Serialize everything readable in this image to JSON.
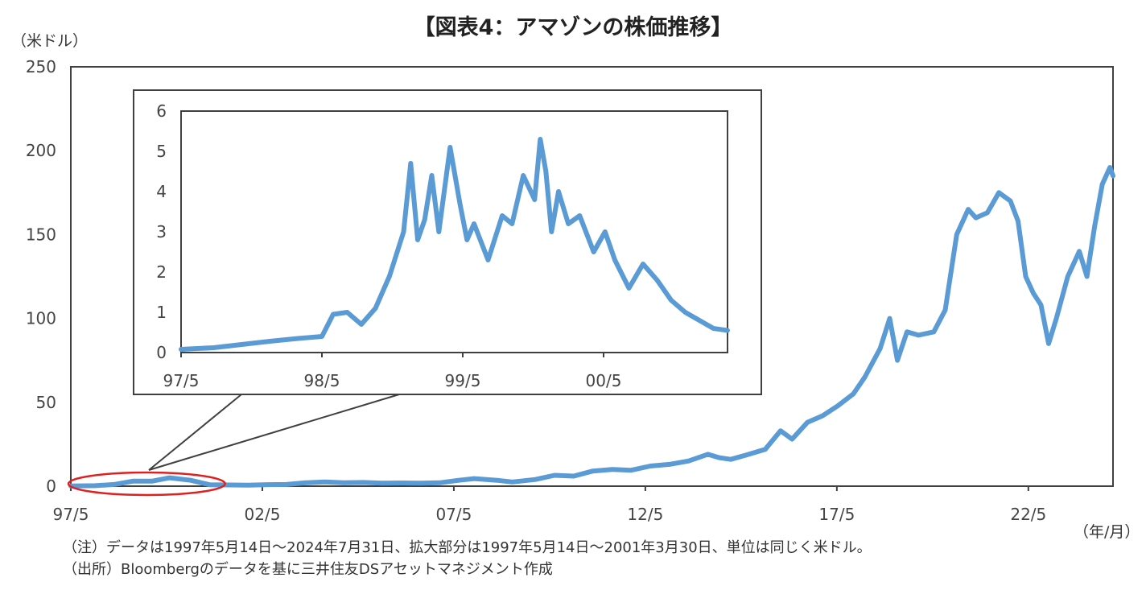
{
  "title": "【図表4：アマゾンの株価推移】",
  "y_unit": "（米ドル）",
  "x_unit": "（年/月）",
  "notes": {
    "note1": "（注）データは1997年5月14日～2024年7月31日、拡大部分は1997年5月14日～2001年3月30日、単位は同じく米ドル。",
    "note2": "（出所）Bloombergのデータを基に三井住友DSアセットマネジメント作成"
  },
  "colors": {
    "line": "#5b9bd5",
    "ellipse": "#e02020",
    "axis": "#404040",
    "callout": "#404040"
  },
  "chart_data": [
    {
      "type": "line",
      "title": "",
      "xlabel": "（年/月）",
      "ylabel": "（米ドル）",
      "ylim": [
        0,
        250
      ],
      "yticks": [
        0,
        50,
        100,
        150,
        200,
        250
      ],
      "xlim": [
        1997.37,
        2024.58
      ],
      "xticks": [
        {
          "label": "97/5",
          "value": 1997.37
        },
        {
          "label": "02/5",
          "value": 2002.37
        },
        {
          "label": "07/5",
          "value": 2007.37
        },
        {
          "label": "12/5",
          "value": 2012.37
        },
        {
          "label": "17/5",
          "value": 2017.37
        },
        {
          "label": "22/5",
          "value": 2022.37
        }
      ],
      "grid": false,
      "series": [
        {
          "x": [
            1997.37,
            1998.0,
            1998.5,
            1999.0,
            1999.5,
            1999.95,
            2000.5,
            2001.0,
            2001.5,
            2002.0,
            2002.5,
            2003.0,
            2003.5,
            2004.0,
            2004.5,
            2005.0,
            2005.5,
            2006.0,
            2006.5,
            2007.0,
            2007.5,
            2007.9,
            2008.5,
            2008.9,
            2009.5,
            2010.0,
            2010.5,
            2011.0,
            2011.5,
            2012.0,
            2012.5,
            2013.0,
            2013.5,
            2014.0,
            2014.3,
            2014.6,
            2015.0,
            2015.5,
            2015.9,
            2016.2,
            2016.6,
            2017.0,
            2017.4,
            2017.8,
            2018.1,
            2018.5,
            2018.75,
            2018.95,
            2019.2,
            2019.5,
            2019.9,
            2020.2,
            2020.5,
            2020.8,
            2021.0,
            2021.3,
            2021.6,
            2021.9,
            2022.1,
            2022.3,
            2022.5,
            2022.7,
            2022.9,
            2023.1,
            2023.4,
            2023.7,
            2023.9,
            2024.1,
            2024.3,
            2024.5,
            2024.58
          ],
          "y": [
            0.1,
            0.3,
            1.0,
            3.0,
            3.0,
            5.0,
            3.5,
            0.8,
            0.7,
            0.6,
            0.9,
            1.0,
            2.0,
            2.5,
            2.0,
            2.2,
            1.8,
            1.9,
            1.8,
            2.0,
            3.5,
            4.5,
            3.5,
            2.5,
            4.0,
            6.5,
            6.0,
            9.0,
            10.0,
            9.5,
            12.0,
            13.0,
            15.0,
            19.0,
            17.0,
            16.0,
            18.5,
            22.0,
            33.0,
            28.0,
            38.0,
            42.0,
            48.0,
            55.0,
            65.0,
            82.0,
            100.0,
            75.0,
            92.0,
            90.0,
            92.0,
            105.0,
            150.0,
            165.0,
            160.0,
            163.0,
            175.0,
            170.0,
            158.0,
            125.0,
            115.0,
            108.0,
            85.0,
            100.0,
            125.0,
            140.0,
            125.0,
            155.0,
            180.0,
            190.0,
            185.0
          ]
        }
      ]
    },
    {
      "type": "line",
      "title": "",
      "xlabel": "",
      "ylabel": "",
      "ylim": [
        0,
        6
      ],
      "yticks": [
        0,
        1,
        2,
        3,
        4,
        5,
        6
      ],
      "xlim": [
        1997.37,
        2001.25
      ],
      "xticks": [
        {
          "label": "97/5",
          "value": 1997.37
        },
        {
          "label": "98/5",
          "value": 1998.37
        },
        {
          "label": "99/5",
          "value": 1999.37
        },
        {
          "label": "00/5",
          "value": 2000.37
        }
      ],
      "grid": false,
      "series": [
        {
          "x": [
            1997.37,
            1997.6,
            1997.8,
            1998.0,
            1998.2,
            1998.37,
            1998.45,
            1998.55,
            1998.65,
            1998.75,
            1998.85,
            1998.95,
            1999.0,
            1999.05,
            1999.1,
            1999.15,
            1999.2,
            1999.28,
            1999.35,
            1999.4,
            1999.45,
            1999.55,
            1999.65,
            1999.72,
            1999.8,
            1999.88,
            1999.92,
            1999.96,
            2000.0,
            2000.05,
            2000.12,
            2000.2,
            2000.3,
            2000.38,
            2000.45,
            2000.55,
            2000.65,
            2000.75,
            2000.85,
            2000.95,
            2001.05,
            2001.15,
            2001.25
          ],
          "y": [
            0.08,
            0.12,
            0.2,
            0.28,
            0.35,
            0.4,
            0.95,
            1.0,
            0.7,
            1.1,
            1.9,
            3.0,
            4.7,
            2.8,
            3.3,
            4.4,
            3.0,
            5.1,
            3.7,
            2.8,
            3.2,
            2.3,
            3.4,
            3.2,
            4.4,
            3.8,
            5.3,
            4.5,
            3.0,
            4.0,
            3.2,
            3.4,
            2.5,
            3.0,
            2.3,
            1.6,
            2.2,
            1.8,
            1.3,
            1.0,
            0.8,
            0.6,
            0.55
          ]
        }
      ]
    }
  ]
}
